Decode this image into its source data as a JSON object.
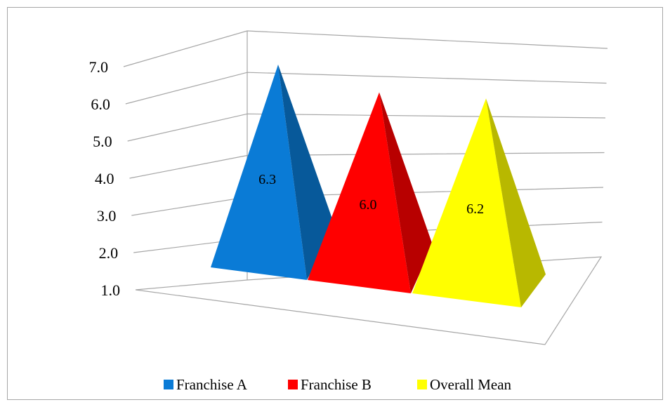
{
  "chart_data": {
    "type": "bar",
    "bar_shape": "3d-pyramid",
    "categories": [
      "Franchise A",
      "Franchise B",
      "Overall Mean"
    ],
    "values": [
      6.3,
      6.0,
      6.2
    ],
    "data_labels": [
      "6.3",
      "6.0",
      "6.2"
    ],
    "colors": [
      "#0a7bd6",
      "#ff0000",
      "#ffff00"
    ],
    "y_ticks": [
      "1.0",
      "2.0",
      "3.0",
      "4.0",
      "5.0",
      "6.0",
      "7.0"
    ],
    "ylim": [
      1,
      7
    ],
    "grid": true,
    "legend_position": "bottom",
    "legend": [
      "Franchise A",
      "Franchise B",
      "Overall Mean"
    ],
    "title": "",
    "xlabel": "",
    "ylabel": ""
  }
}
